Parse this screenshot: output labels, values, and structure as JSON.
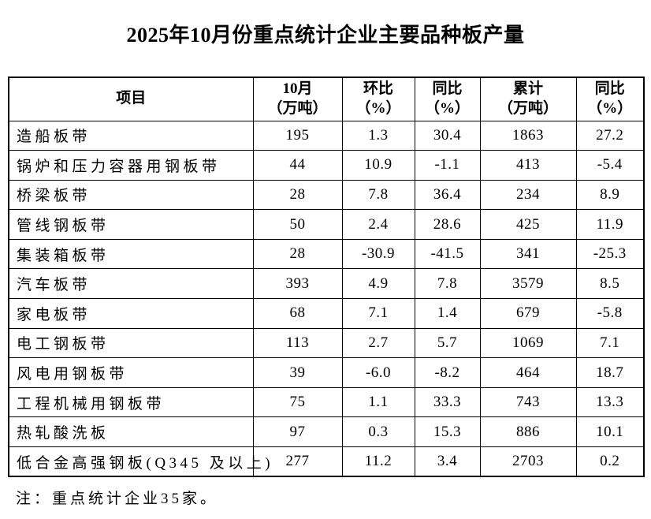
{
  "page": {
    "background_color": "#ffffff",
    "text_color": "#000000",
    "border_color": "#000000"
  },
  "title": "2025年10月份重点统计企业主要品种板产量",
  "table": {
    "columns": [
      {
        "line1": "项目",
        "line2": ""
      },
      {
        "line1": "10月",
        "line2": "（万吨）"
      },
      {
        "line1": "环比",
        "line2": "（%）"
      },
      {
        "line1": "同比",
        "line2": "（%）"
      },
      {
        "line1": "累计",
        "line2": "（万吨）"
      },
      {
        "line1": "同比",
        "line2": "（%）"
      }
    ],
    "rows": [
      {
        "item": "造船板带",
        "oct": "195",
        "mom": "1.3",
        "yoy": "30.4",
        "cum": "1863",
        "cum_yoy": "27.2"
      },
      {
        "item": "锅炉和压力容器用钢板带",
        "oct": "44",
        "mom": "10.9",
        "yoy": "-1.1",
        "cum": "413",
        "cum_yoy": "-5.4"
      },
      {
        "item": "桥梁板带",
        "oct": "28",
        "mom": "7.8",
        "yoy": "36.4",
        "cum": "234",
        "cum_yoy": "8.9"
      },
      {
        "item": "管线钢板带",
        "oct": "50",
        "mom": "2.4",
        "yoy": "28.6",
        "cum": "425",
        "cum_yoy": "11.9"
      },
      {
        "item": "集装箱板带",
        "oct": "28",
        "mom": "-30.9",
        "yoy": "-41.5",
        "cum": "341",
        "cum_yoy": "-25.3"
      },
      {
        "item": "汽车板带",
        "oct": "393",
        "mom": "4.9",
        "yoy": "7.8",
        "cum": "3579",
        "cum_yoy": "8.5"
      },
      {
        "item": "家电板带",
        "oct": "68",
        "mom": "7.1",
        "yoy": "1.4",
        "cum": "679",
        "cum_yoy": "-5.8"
      },
      {
        "item": "电工钢板带",
        "oct": "113",
        "mom": "2.7",
        "yoy": "5.7",
        "cum": "1069",
        "cum_yoy": "7.1"
      },
      {
        "item": "风电用钢板带",
        "oct": "39",
        "mom": "-6.0",
        "yoy": "-8.2",
        "cum": "464",
        "cum_yoy": "18.7"
      },
      {
        "item": "工程机械用钢板带",
        "oct": "75",
        "mom": "1.1",
        "yoy": "33.3",
        "cum": "743",
        "cum_yoy": "13.3"
      },
      {
        "item": "热轧酸洗板",
        "oct": "97",
        "mom": "0.3",
        "yoy": "15.3",
        "cum": "886",
        "cum_yoy": "10.1"
      },
      {
        "item": "低合金高强钢板(Q345 及以上)",
        "oct": "277",
        "mom": "11.2",
        "yoy": "3.4",
        "cum": "2703",
        "cum_yoy": "0.2"
      }
    ]
  },
  "footnote": "注：重点统计企业35家。",
  "chart_data": {
    "type": "table",
    "title": "2025年10月份重点统计企业主要品种板产量",
    "columns": [
      "项目",
      "10月（万吨）",
      "环比（%）",
      "同比（%）",
      "累计（万吨）",
      "同比（%）"
    ],
    "rows": [
      [
        "造船板带",
        "195",
        "1.3",
        "30.4",
        "1863",
        "27.2"
      ],
      [
        "锅炉和压力容器用钢板带",
        "44",
        "10.9",
        "-1.1",
        "413",
        "-5.4"
      ],
      [
        "桥梁板带",
        "28",
        "7.8",
        "36.4",
        "234",
        "8.9"
      ],
      [
        "管线钢板带",
        "50",
        "2.4",
        "28.6",
        "425",
        "11.9"
      ],
      [
        "集装箱板带",
        "28",
        "-30.9",
        "-41.5",
        "341",
        "-25.3"
      ],
      [
        "汽车板带",
        "393",
        "4.9",
        "7.8",
        "3579",
        "8.5"
      ],
      [
        "家电板带",
        "68",
        "7.1",
        "1.4",
        "679",
        "-5.8"
      ],
      [
        "电工钢板带",
        "113",
        "2.7",
        "5.7",
        "1069",
        "7.1"
      ],
      [
        "风电用钢板带",
        "39",
        "-6.0",
        "-8.2",
        "464",
        "18.7"
      ],
      [
        "工程机械用钢板带",
        "75",
        "1.1",
        "33.3",
        "743",
        "13.3"
      ],
      [
        "热轧酸洗板",
        "97",
        "0.3",
        "15.3",
        "886",
        "10.1"
      ],
      [
        "低合金高强钢板(Q345 及以上)",
        "277",
        "11.2",
        "3.4",
        "2703",
        "0.2"
      ]
    ],
    "note": "注：重点统计企业35家。"
  }
}
